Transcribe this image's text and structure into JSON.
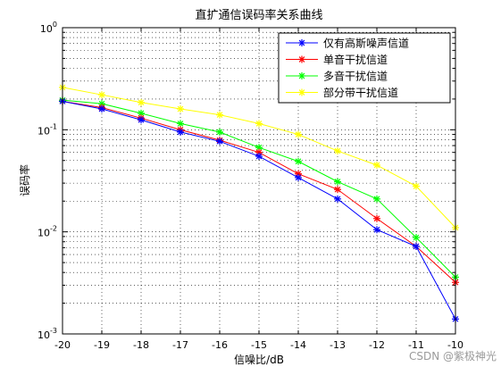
{
  "watermark": "CSDN @紫极神光",
  "chart_data": {
    "type": "line",
    "title": "直扩通信误码率关系曲线",
    "xlabel": "信噪比/dB",
    "ylabel": "误码率",
    "x": [
      -20,
      -19,
      -18,
      -17,
      -16,
      -15,
      -14,
      -13,
      -12,
      -11,
      -10
    ],
    "xlim": [
      -20,
      -10
    ],
    "ylim": [
      0.001,
      1
    ],
    "yscale": "log",
    "xticks": [
      "-20",
      "-19",
      "-18",
      "-17",
      "-16",
      "-15",
      "-14",
      "-13",
      "-12",
      "-11",
      "-10"
    ],
    "yticks": [
      {
        "base": "10",
        "exp": "0",
        "value": 1
      },
      {
        "base": "10",
        "exp": "-1",
        "value": 0.1
      },
      {
        "base": "10",
        "exp": "-2",
        "value": 0.01
      },
      {
        "base": "10",
        "exp": "-3",
        "value": 0.001
      }
    ],
    "grid": true,
    "grid_style": "dotted",
    "legend_position": "top-right",
    "marker": "asterisk",
    "series": [
      {
        "name": "仅有高斯噪声信道",
        "color": "#0000ff",
        "values": [
          0.19,
          0.16,
          0.125,
          0.095,
          0.077,
          0.055,
          0.034,
          0.021,
          0.0105,
          0.0072,
          0.0014
        ]
      },
      {
        "name": "单音干扰信道",
        "color": "#ff0000",
        "values": [
          0.19,
          0.165,
          0.13,
          0.1,
          0.079,
          0.06,
          0.037,
          0.026,
          0.0135,
          0.0072,
          0.0032
        ]
      },
      {
        "name": "多音干扰信道",
        "color": "#00ff00",
        "values": [
          0.195,
          0.18,
          0.145,
          0.115,
          0.095,
          0.067,
          0.049,
          0.031,
          0.021,
          0.0088,
          0.0036
        ]
      },
      {
        "name": "部分带干扰信道",
        "color": "#ffff00",
        "values": [
          0.26,
          0.22,
          0.185,
          0.16,
          0.14,
          0.115,
          0.09,
          0.062,
          0.045,
          0.028,
          0.011
        ]
      }
    ]
  }
}
